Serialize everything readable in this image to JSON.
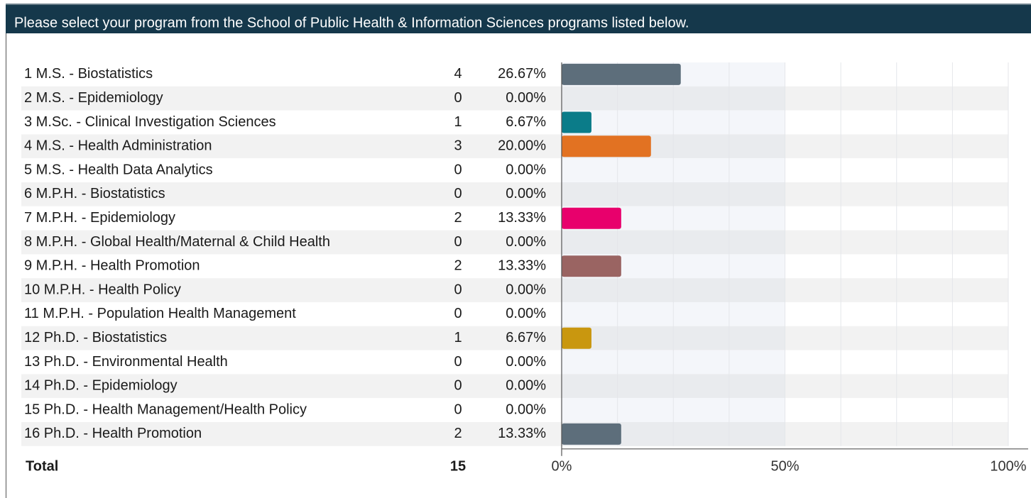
{
  "chart_data": {
    "type": "bar",
    "title": "Please select your program from the School of Public Health & Information Sciences programs listed below.",
    "categories": [
      "1 M.S. - Biostatistics",
      "2 M.S. - Epidemiology",
      "3 M.Sc. - Clinical Investigation Sciences",
      "4 M.S. - Health Administration",
      "5 M.S. - Health Data Analytics",
      "6 M.P.H. - Biostatistics",
      "7 M.P.H. - Epidemiology",
      "8 M.P.H. - Global Health/Maternal & Child Health",
      "9 M.P.H. - Health Promotion",
      "10 M.P.H. - Health Policy",
      "11 M.P.H. - Population Health Management",
      "12 Ph.D. - Biostatistics",
      "13 Ph.D. - Environmental Health",
      "14 Ph.D. - Epidemiology",
      "15 Ph.D. - Health Management/Health Policy",
      "16 Ph.D. - Health Promotion"
    ],
    "counts": [
      4,
      0,
      1,
      3,
      0,
      0,
      2,
      0,
      2,
      0,
      0,
      1,
      0,
      0,
      0,
      2
    ],
    "values": [
      26.67,
      0,
      6.67,
      20,
      0,
      0,
      13.33,
      0,
      13.33,
      0,
      0,
      6.67,
      0,
      0,
      0,
      13.33
    ],
    "value_labels": [
      "26.67%",
      "0.00%",
      "6.67%",
      "20.00%",
      "0.00%",
      "0.00%",
      "13.33%",
      "0.00%",
      "13.33%",
      "0.00%",
      "0.00%",
      "6.67%",
      "0.00%",
      "0.00%",
      "0.00%",
      "13.33%"
    ],
    "colors": [
      "#5d6e7b",
      null,
      "#0b7c89",
      "#e27222",
      null,
      null,
      "#e8006c",
      null,
      "#9a6462",
      null,
      null,
      "#c9970f",
      null,
      null,
      null,
      "#5d6e7b"
    ],
    "total_label": "Total",
    "total": 15,
    "xlim": [
      0,
      100
    ],
    "xticks": [
      {
        "value": 0,
        "label": "0%"
      },
      {
        "value": 50,
        "label": "50%"
      },
      {
        "value": 100,
        "label": "100%"
      }
    ],
    "minor_xticks": [
      12.5,
      25,
      37.5,
      62.5,
      75,
      87.5
    ],
    "grid": true
  }
}
